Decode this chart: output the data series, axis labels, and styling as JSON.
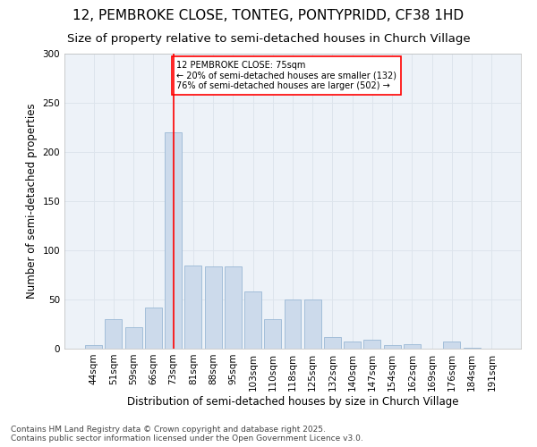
{
  "title": "12, PEMBROKE CLOSE, TONTEG, PONTYPRIDD, CF38 1HD",
  "subtitle": "Size of property relative to semi-detached houses in Church Village",
  "xlabel": "Distribution of semi-detached houses by size in Church Village",
  "ylabel": "Number of semi-detached properties",
  "categories": [
    "44sqm",
    "51sqm",
    "59sqm",
    "66sqm",
    "73sqm",
    "81sqm",
    "88sqm",
    "95sqm",
    "103sqm",
    "110sqm",
    "118sqm",
    "125sqm",
    "132sqm",
    "140sqm",
    "147sqm",
    "154sqm",
    "162sqm",
    "169sqm",
    "176sqm",
    "184sqm",
    "191sqm"
  ],
  "values": [
    4,
    30,
    22,
    42,
    220,
    85,
    84,
    84,
    58,
    30,
    50,
    50,
    12,
    7,
    9,
    4,
    5,
    0,
    7,
    1,
    0
  ],
  "bar_color": "#ccdaeb",
  "bar_edge_color": "#9ab8d5",
  "grid_color": "#dde4ec",
  "background_color": "#edf2f8",
  "vline_x_index": 4,
  "vline_color": "red",
  "annotation_text": "12 PEMBROKE CLOSE: 75sqm\n← 20% of semi-detached houses are smaller (132)\n76% of semi-detached houses are larger (502) →",
  "annotation_box_facecolor": "white",
  "annotation_box_edgecolor": "red",
  "ylim": [
    0,
    300
  ],
  "yticks": [
    0,
    50,
    100,
    150,
    200,
    250,
    300
  ],
  "footnote": "Contains HM Land Registry data © Crown copyright and database right 2025.\nContains public sector information licensed under the Open Government Licence v3.0.",
  "title_fontsize": 11,
  "subtitle_fontsize": 9.5,
  "xlabel_fontsize": 8.5,
  "ylabel_fontsize": 8.5,
  "tick_fontsize": 7.5,
  "annotation_fontsize": 7,
  "footnote_fontsize": 6.5
}
